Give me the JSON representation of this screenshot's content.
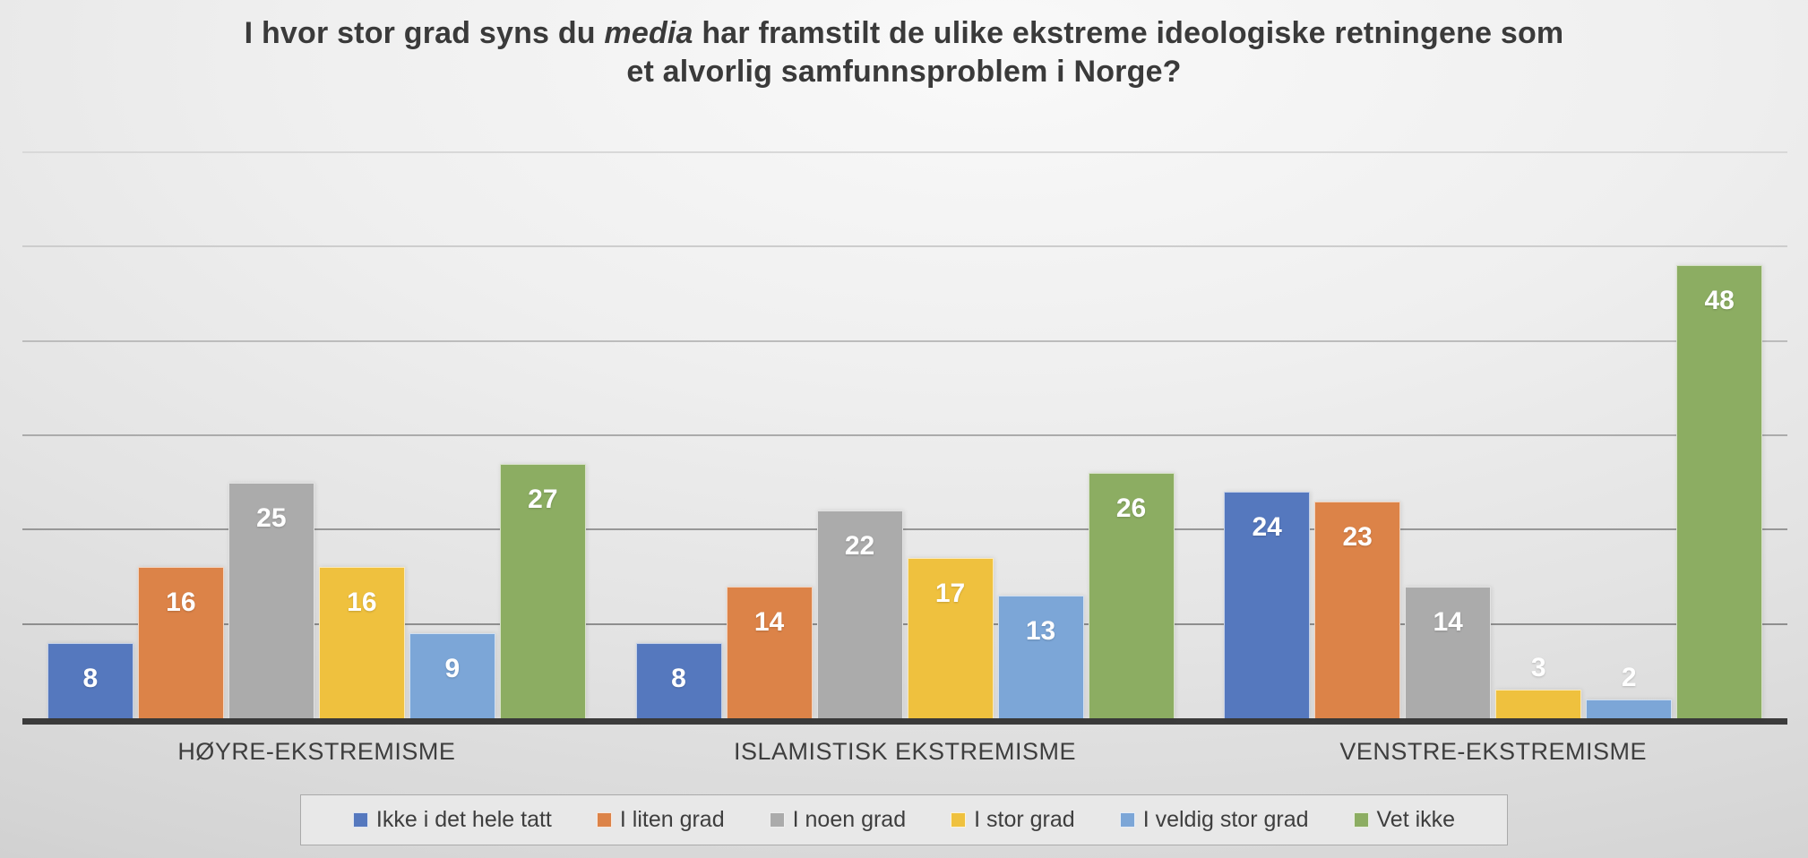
{
  "title": {
    "line1_pre": "I hvor stor grad syns du ",
    "line1_italic": "media",
    "line1_post": " har framstilt de ulike ekstreme ideologiske retningene som",
    "line2": "et alvorlig samfunnsproblem i Norge?"
  },
  "chart_data": {
    "type": "bar",
    "title": "I hvor stor grad syns du media har framstilt de ulike ekstreme ideologiske retningene som et alvorlig samfunnsproblem i Norge?",
    "categories": [
      "HØYRE-EKSTREMISME",
      "ISLAMISTISK EKSTREMISME",
      "VENSTRE-EKSTREMISME"
    ],
    "series": [
      {
        "name": "Ikke i det hele tatt",
        "color": "#5578BE",
        "values": [
          8,
          8,
          24
        ]
      },
      {
        "name": "I liten grad",
        "color": "#DC8348",
        "values": [
          16,
          14,
          23
        ]
      },
      {
        "name": "I noen grad",
        "color": "#ABABAB",
        "values": [
          25,
          22,
          14
        ]
      },
      {
        "name": "I stor grad",
        "color": "#EFC13E",
        "values": [
          16,
          17,
          3
        ]
      },
      {
        "name": "I veldig stor grad",
        "color": "#7CA6D7",
        "values": [
          9,
          13,
          2
        ]
      },
      {
        "name": "Vet ikke",
        "color": "#8CAD62",
        "values": [
          27,
          26,
          48
        ]
      }
    ],
    "ylim": [
      0,
      60
    ],
    "gridline_step": 10,
    "grid": true,
    "legend_position": "bottom",
    "data_labels": true
  },
  "colors": {
    "axis": "#3b3b3b",
    "text": "#3e3e3e",
    "data_label": "#ffffff",
    "legend_fill": "#e8e8e8",
    "legend_border": "#aaaaaa",
    "gridlines": [
      "#8e8e8e",
      "#979797",
      "#ababab",
      "#bcbcbc",
      "#cdcdcd",
      "#d8d8d8"
    ]
  }
}
